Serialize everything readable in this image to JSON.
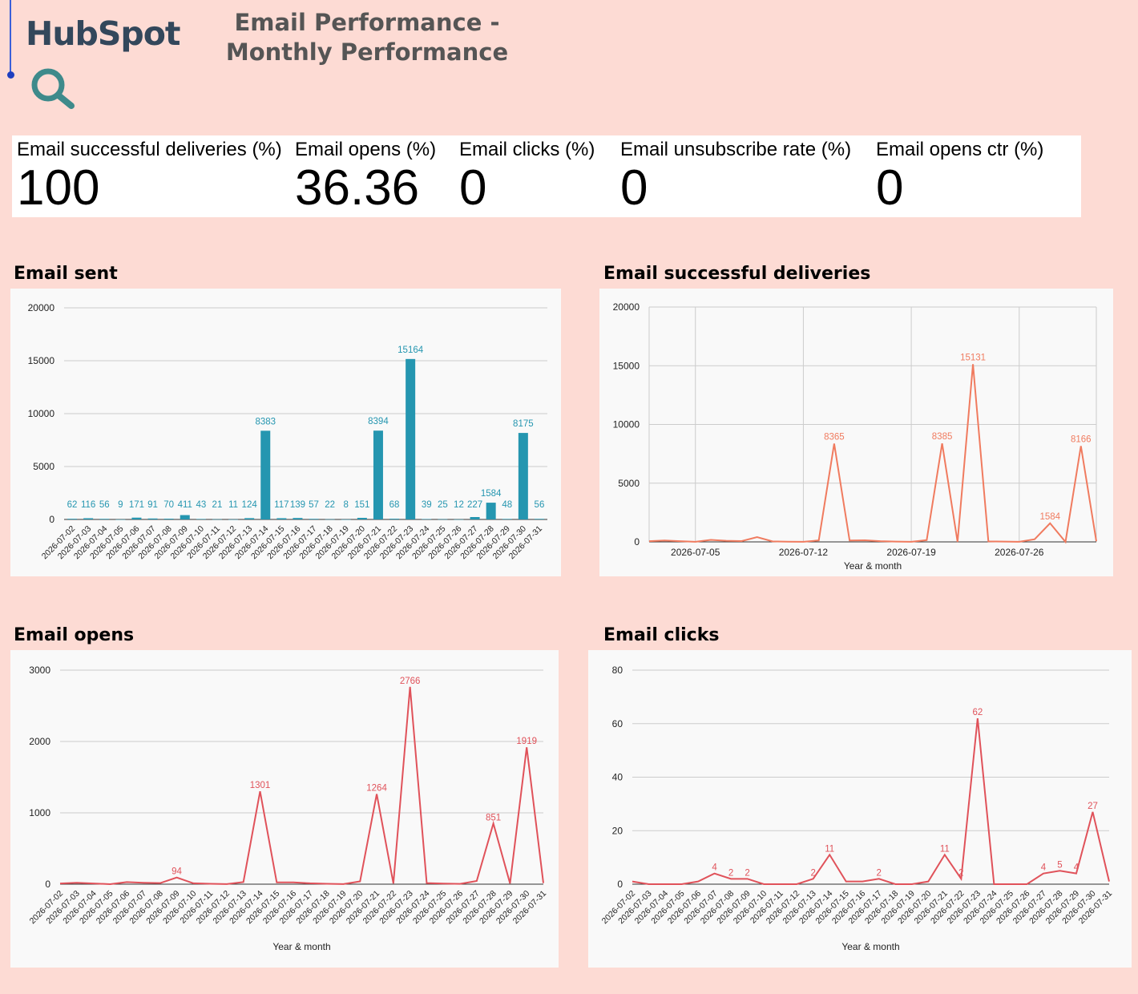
{
  "app": {
    "logo_text": "HubSpot",
    "title": "Email Performance - Monthly Performance",
    "brand_color": "#ff7a59",
    "logo_color": "#33475b",
    "search_icon_color": "#3e8a8b",
    "search_icon": "search-icon"
  },
  "kpis": [
    {
      "label": "Email successful deliveries (%)",
      "value": "100"
    },
    {
      "label": "Email opens (%)",
      "value": "36.36"
    },
    {
      "label": "Email clicks (%)",
      "value": "0"
    },
    {
      "label": "Email unsubscribe rate (%)",
      "value": "0"
    },
    {
      "label": "Email opens ctr (%)",
      "value": "0"
    }
  ],
  "chart_titles": {
    "sent": "Email sent",
    "deliveries": "Email successful deliveries",
    "opens": "Email opens",
    "clicks": "Email clicks"
  },
  "chart_data": [
    {
      "type": "bar",
      "title": "Email sent",
      "color": "#2596b0",
      "categories": [
        "2026-07-02",
        "2026-07-03",
        "2026-07-04",
        "2026-07-05",
        "2026-07-06",
        "2026-07-07",
        "2026-07-08",
        "2026-07-09",
        "2026-07-10",
        "2026-07-11",
        "2026-07-12",
        "2026-07-13",
        "2026-07-14",
        "2026-07-15",
        "2026-07-16",
        "2026-07-17",
        "2026-07-18",
        "2026-07-19",
        "2026-07-20",
        "2026-07-21",
        "2026-07-22",
        "2026-07-23",
        "2026-07-24",
        "2026-07-25",
        "2026-07-26",
        "2026-07-27",
        "2026-07-28",
        "2026-07-29",
        "2026-07-30",
        "2026-07-31"
      ],
      "values": [
        62,
        116,
        56,
        9,
        171,
        91,
        70,
        411,
        43,
        21,
        11,
        124,
        8383,
        117,
        139,
        57,
        22,
        8,
        151,
        8394,
        68,
        15164,
        39,
        25,
        12,
        227,
        1584,
        48,
        8175,
        56
      ],
      "ylim": [
        0,
        20000
      ],
      "yticks": [
        0,
        5000,
        10000,
        15000,
        20000
      ],
      "xlabel": "",
      "ylabel": "",
      "grid": true,
      "data_labels": true
    },
    {
      "type": "line",
      "title": "Email successful deliveries",
      "color": "#f07b5f",
      "x": [
        "2026-07-02",
        "2026-07-03",
        "2026-07-04",
        "2026-07-05",
        "2026-07-06",
        "2026-07-07",
        "2026-07-08",
        "2026-07-09",
        "2026-07-10",
        "2026-07-11",
        "2026-07-12",
        "2026-07-13",
        "2026-07-14",
        "2026-07-15",
        "2026-07-16",
        "2026-07-17",
        "2026-07-18",
        "2026-07-19",
        "2026-07-20",
        "2026-07-21",
        "2026-07-22",
        "2026-07-23",
        "2026-07-24",
        "2026-07-25",
        "2026-07-26",
        "2026-07-27",
        "2026-07-28",
        "2026-07-29",
        "2026-07-30",
        "2026-07-31"
      ],
      "values": [
        62,
        116,
        56,
        9,
        171,
        91,
        70,
        411,
        43,
        21,
        11,
        124,
        8365,
        117,
        139,
        57,
        22,
        8,
        151,
        8385,
        0,
        15131,
        39,
        25,
        12,
        227,
        1584,
        0,
        8166,
        56
      ],
      "labeled_points": [
        "2026-07-14",
        "2026-07-21",
        "2026-07-23",
        "2026-07-28",
        "2026-07-30"
      ],
      "x_ticks": [
        "2026-07-05",
        "2026-07-12",
        "2026-07-19",
        "2026-07-26"
      ],
      "ylim": [
        0,
        20000
      ],
      "yticks": [
        0,
        5000,
        10000,
        15000,
        20000
      ],
      "xlabel": "Year & month",
      "ylabel": "",
      "grid": true
    },
    {
      "type": "line",
      "title": "Email opens",
      "color": "#e0525a",
      "x": [
        "2026-07-02",
        "2026-07-03",
        "2026-07-04",
        "2026-07-05",
        "2026-07-06",
        "2026-07-07",
        "2026-07-08",
        "2026-07-09",
        "2026-07-10",
        "2026-07-11",
        "2026-07-12",
        "2026-07-13",
        "2026-07-14",
        "2026-07-15",
        "2026-07-16",
        "2026-07-17",
        "2026-07-18",
        "2026-07-19",
        "2026-07-20",
        "2026-07-21",
        "2026-07-22",
        "2026-07-23",
        "2026-07-24",
        "2026-07-25",
        "2026-07-26",
        "2026-07-27",
        "2026-07-28",
        "2026-07-29",
        "2026-07-30",
        "2026-07-31"
      ],
      "values": [
        10,
        20,
        10,
        0,
        30,
        20,
        15,
        94,
        12,
        6,
        2,
        30,
        1301,
        25,
        25,
        12,
        5,
        2,
        40,
        1264,
        10,
        2766,
        15,
        8,
        4,
        45,
        851,
        10,
        1919,
        15
      ],
      "labeled_points": [
        "2026-07-09",
        "2026-07-14",
        "2026-07-21",
        "2026-07-23",
        "2026-07-28",
        "2026-07-30"
      ],
      "ylim": [
        0,
        3000
      ],
      "yticks": [
        0,
        1000,
        2000,
        3000
      ],
      "xlabel": "Year & month",
      "ylabel": "",
      "grid": true
    },
    {
      "type": "line",
      "title": "Email clicks",
      "color": "#e0525a",
      "x": [
        "2026-07-02",
        "2026-07-03",
        "2026-07-04",
        "2026-07-05",
        "2026-07-06",
        "2026-07-07",
        "2026-07-08",
        "2026-07-09",
        "2026-07-10",
        "2026-07-11",
        "2026-07-12",
        "2026-07-13",
        "2026-07-14",
        "2026-07-15",
        "2026-07-16",
        "2026-07-17",
        "2026-07-18",
        "2026-07-19",
        "2026-07-20",
        "2026-07-21",
        "2026-07-22",
        "2026-07-23",
        "2026-07-24",
        "2026-07-25",
        "2026-07-26",
        "2026-07-27",
        "2026-07-28",
        "2026-07-29",
        "2026-07-30",
        "2026-07-31"
      ],
      "values": [
        1,
        0,
        0,
        0,
        1,
        4,
        2,
        2,
        0,
        0,
        0,
        2,
        11,
        1,
        1,
        2,
        0,
        0,
        1,
        11,
        2,
        62,
        0,
        0,
        0,
        4,
        5,
        4,
        27,
        1
      ],
      "labeled_points": [
        "2026-07-07",
        "2026-07-08",
        "2026-07-09",
        "2026-07-13",
        "2026-07-14",
        "2026-07-17",
        "2026-07-21",
        "2026-07-22",
        "2026-07-23",
        "2026-07-27",
        "2026-07-28",
        "2026-07-29",
        "2026-07-30"
      ],
      "ylim": [
        0,
        80
      ],
      "yticks": [
        0,
        20,
        40,
        60,
        80
      ],
      "xlabel": "Year & month",
      "ylabel": "",
      "grid": true
    }
  ]
}
